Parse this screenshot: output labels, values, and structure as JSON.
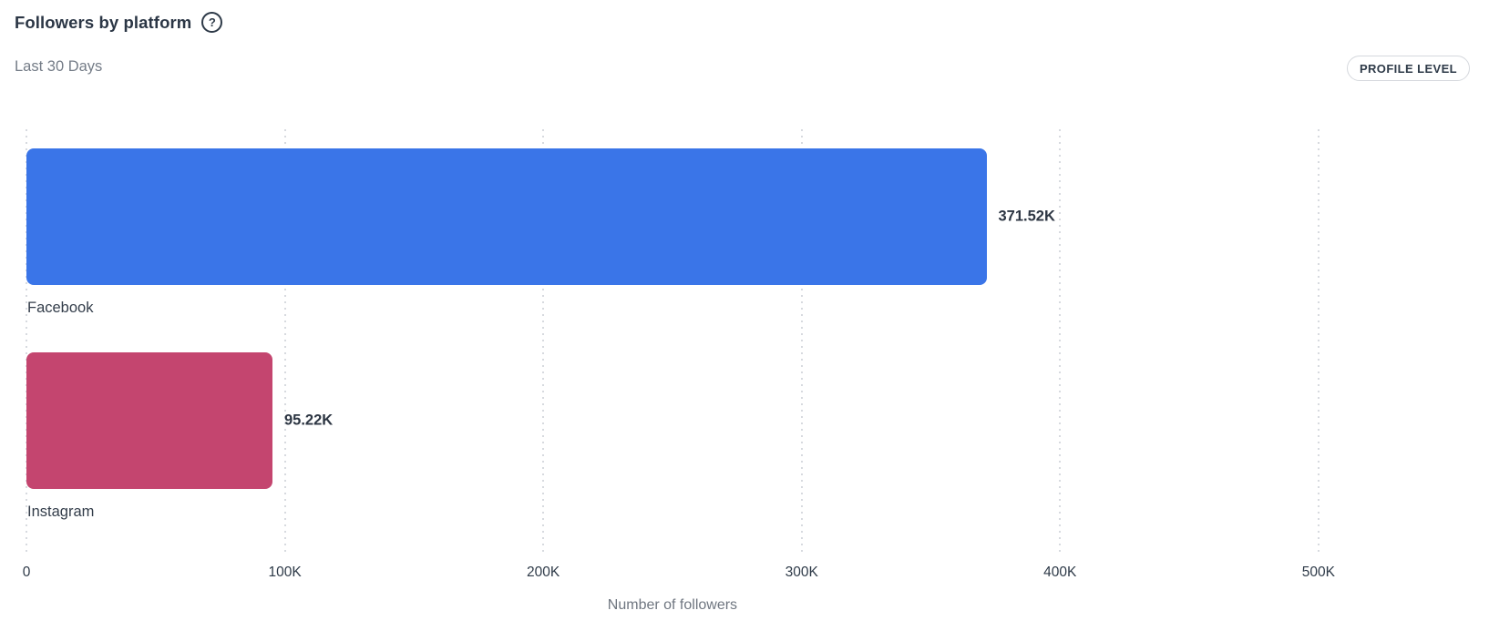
{
  "header": {
    "title": "Followers by platform",
    "help_icon": "question-mark-circle",
    "help_glyph": "?",
    "date_range": "Last 30 Days",
    "badge_label": "PROFILE LEVEL"
  },
  "chart_data": {
    "type": "bar",
    "orientation": "horizontal",
    "title": "Followers by platform",
    "subtitle": "Last 30 Days",
    "xlabel": "Number of followers",
    "ylabel": "",
    "categories": [
      "Facebook",
      "Instagram"
    ],
    "values": [
      371520,
      95220
    ],
    "value_labels": [
      "371.52K",
      "95.22K"
    ],
    "bar_colors": [
      "#3A75E8",
      "#C4456F"
    ],
    "x_ticks": [
      {
        "value": 0,
        "label": "0"
      },
      {
        "value": 100000,
        "label": "100K"
      },
      {
        "value": 200000,
        "label": "200K"
      },
      {
        "value": 300000,
        "label": "300K"
      },
      {
        "value": 400000,
        "label": "400K"
      },
      {
        "value": 500000,
        "label": "500K"
      }
    ],
    "xlim": [
      0,
      566000
    ],
    "grid": "vertical-dotted",
    "legend": "none"
  },
  "colors": {
    "facebook_bar": "#3A75E8",
    "instagram_bar": "#C4456F",
    "text_dark": "#2E3A48",
    "text_gray": "#747C87",
    "gridline": "#D7DADF",
    "badge_border": "#D5D8DD",
    "background": "#FFFFFF"
  }
}
